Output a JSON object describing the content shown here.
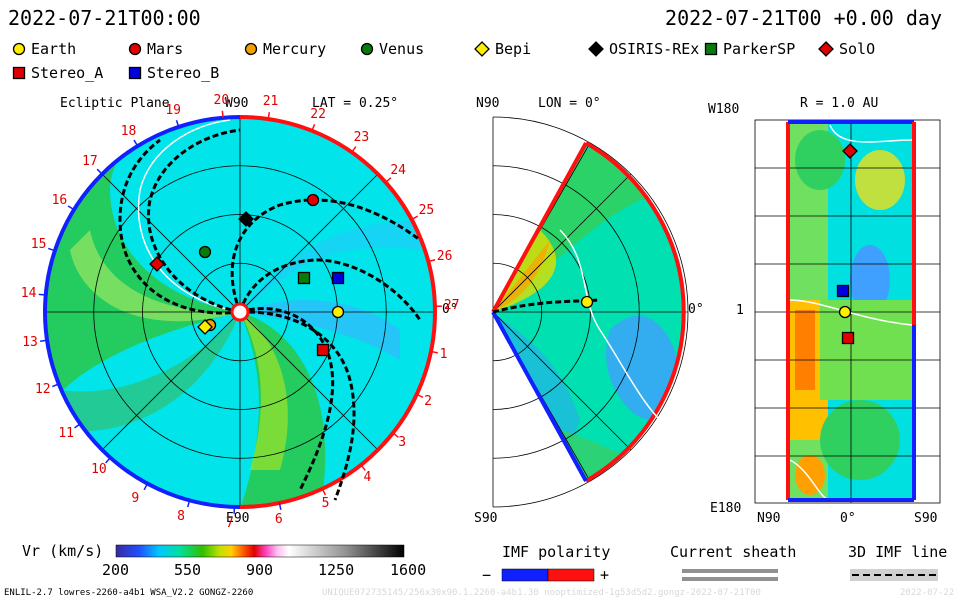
{
  "header": {
    "datetime_left": "2022-07-21T00:00",
    "datetime_right": "2022-07-21T00 +0.00 day"
  },
  "legend": [
    {
      "label": "Earth",
      "color": "#ffee00",
      "shape": "circle"
    },
    {
      "label": "Mars",
      "color": "#e00000",
      "shape": "circle"
    },
    {
      "label": "Mercury",
      "color": "#f0a000",
      "shape": "circle"
    },
    {
      "label": "Venus",
      "color": "#0a7a0a",
      "shape": "circle"
    },
    {
      "label": "Bepi",
      "color": "#ffee00",
      "shape": "diamond"
    },
    {
      "label": "OSIRIS-REx",
      "color": "#000000",
      "shape": "diamond"
    },
    {
      "label": "ParkerSP",
      "color": "#0a7a0a",
      "shape": "square"
    },
    {
      "label": "SolO",
      "color": "#e00000",
      "shape": "diamond"
    },
    {
      "label": "Stereo_A",
      "color": "#e00000",
      "shape": "square"
    },
    {
      "label": "Stereo_B",
      "color": "#0000e0",
      "shape": "square"
    }
  ],
  "panels": {
    "ecliptic": {
      "title": "Ecliptic Plane",
      "lat_label": "LAT = 0.25°",
      "top_label": "W90",
      "bottom_label": "E90",
      "right_label": "0°"
    },
    "meridional": {
      "top_label": "N90",
      "lon_label": "LON = 0°",
      "bottom_label": "S90",
      "right_label": "0°"
    },
    "radial": {
      "r_label": "R = 1.0 AU",
      "top_left": "W180",
      "mid_left": "1",
      "bottom_left": "E180",
      "x_left": "N90",
      "x_mid": "0°",
      "x_right": "S90"
    }
  },
  "chart_data": {
    "type": "heatmap",
    "quantity": "solar wind radial velocity Vr",
    "colorbar": {
      "label": "Vr (km/s)",
      "min": 200,
      "max": 1600,
      "ticks": [
        200,
        550,
        900,
        1250,
        1600
      ]
    },
    "carrington_ticks": [
      "20",
      "21",
      "22",
      "23",
      "24",
      "25",
      "26",
      "27",
      "1",
      "2",
      "3",
      "4",
      "5",
      "6",
      "7",
      "8",
      "9",
      "10",
      "11",
      "12",
      "13",
      "14",
      "15",
      "16",
      "17",
      "18",
      "19"
    ],
    "bodies": [
      "Earth",
      "Mars",
      "Mercury",
      "Venus",
      "Bepi",
      "OSIRIS-REx",
      "ParkerSP",
      "SolO",
      "Stereo_A",
      "Stereo_B"
    ]
  },
  "footer_legend": {
    "imf_title": "IMF polarity",
    "imf_minus": "−",
    "imf_plus": "+",
    "sheath_title": "Current sheath",
    "line_title": "3D IMF line"
  },
  "footer_info": {
    "model": "ENLIL-2.7 lowres-2260-a4b1 WSA_V2.2 GONGZ-2260",
    "run_id": "UNIQUE072735145/256x30x90.1.2260-a4b1.30 nooptimized-1g53d5d2.gongz-2022-07-21T00",
    "run_date": "2022-07-22"
  }
}
